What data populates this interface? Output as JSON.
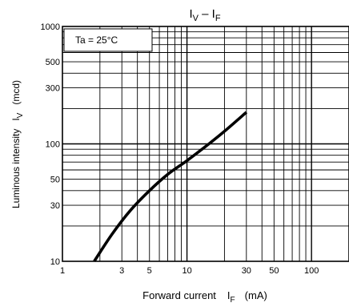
{
  "chart_data": {
    "type": "line",
    "title": "I_V – I_F",
    "title_main": "I",
    "title_sub1": "V",
    "title_sep": " – I",
    "title_sub2": "F",
    "xlabel": "Forward current",
    "xlabel_symbol": "I",
    "xlabel_sub": "F",
    "xlabel_unit": "(mA)",
    "ylabel": "Luminous intensity",
    "ylabel_symbol": "I",
    "ylabel_sub": "V",
    "ylabel_unit": "(mcd)",
    "annotation": "Ta = 25°C",
    "x_scale": "log",
    "y_scale": "log",
    "xlim": [
      1,
      200
    ],
    "ylim": [
      10,
      1000
    ],
    "grid": true,
    "x_tick_labels": [
      {
        "value": 1,
        "label": "1"
      },
      {
        "value": 3,
        "label": "3"
      },
      {
        "value": 5,
        "label": "5"
      },
      {
        "value": 10,
        "label": "10"
      },
      {
        "value": 30,
        "label": "30"
      },
      {
        "value": 50,
        "label": "50"
      },
      {
        "value": 100,
        "label": "100"
      }
    ],
    "y_tick_labels": [
      {
        "value": 10,
        "label": "10"
      },
      {
        "value": 30,
        "label": "30"
      },
      {
        "value": 50,
        "label": "50"
      },
      {
        "value": 100,
        "label": "100"
      },
      {
        "value": 300,
        "label": "300"
      },
      {
        "value": 500,
        "label": "500"
      },
      {
        "value": 1000,
        "label": "1000"
      }
    ],
    "series": [
      {
        "x": [
          1.8,
          2.5,
          3.5,
          5,
          7,
          10,
          15,
          20,
          30
        ],
        "y": [
          10,
          17,
          27,
          40,
          55,
          72,
          100,
          128,
          186
        ]
      }
    ]
  }
}
